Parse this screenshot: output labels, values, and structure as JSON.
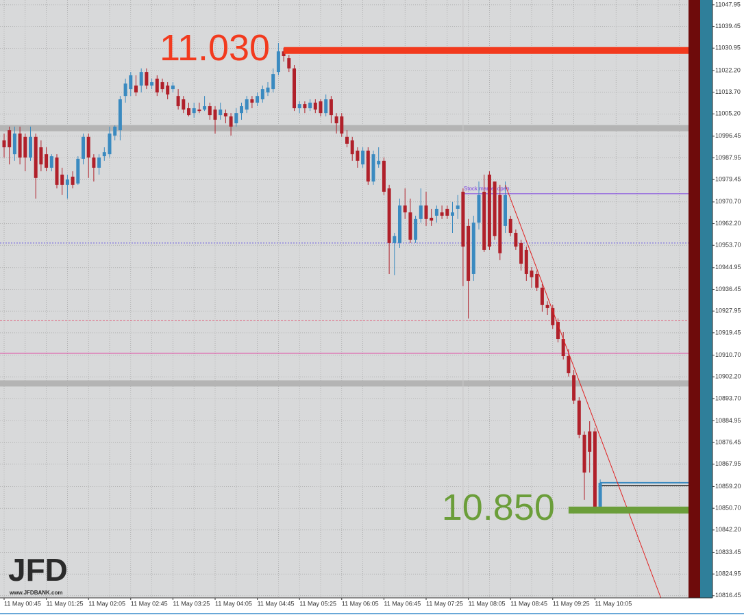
{
  "chart_data": {
    "type": "candlestick",
    "up_color": "#3a8ac0",
    "down_color": "#b0202a",
    "ylim": [
      10815.6,
      11049.8
    ],
    "yticks": [
      11047.95,
      11039.45,
      11030.95,
      {
        "value": 11022.2,
        "label": "11022.20"
      },
      {
        "value": 11013.7,
        "label": "11013.70"
      },
      {
        "value": 11005.2,
        "label": "11005.20"
      },
      10996.45,
      10987.95,
      10979.45,
      {
        "value": 10970.7,
        "label": "10970.70"
      },
      {
        "value": 10962.2,
        "label": "10962.20"
      },
      {
        "value": 10953.7,
        "label": "10953.70"
      },
      10944.95,
      10936.45,
      10927.95,
      10919.45,
      {
        "value": 10910.7,
        "label": "10910.70"
      },
      {
        "value": 10902.2,
        "label": "10902.20"
      },
      {
        "value": 10893.7,
        "label": "10893.70"
      },
      10884.95,
      10876.45,
      10867.95,
      {
        "value": 10859.2,
        "label": "10859.20"
      },
      {
        "value": 10850.7,
        "label": "10850.70"
      },
      {
        "value": 10842.2,
        "label": "10842.20"
      },
      10833.45,
      10824.95,
      10816.45
    ],
    "grid": true,
    "xticks": [
      "11 May 00:45",
      "11 May 01:25",
      "11 May 02:05",
      "11 May 02:45",
      "11 May 03:25",
      "11 May 04:05",
      "11 May 04:45",
      "11 May 05:25",
      "11 May 06:05",
      "11 May 06:45",
      "11 May 07:25",
      "11 May 08:05",
      "11 May 08:45",
      "11 May 09:25",
      "11 May 10:05"
    ],
    "candles": [
      [
        10994.8,
        10997.5,
        10988.1,
        10992.1
      ],
      [
        10998.8,
        11000.2,
        10985.4,
        10992.1
      ],
      [
        10989.4,
        11000.2,
        10986.8,
        10997.5
      ],
      [
        10997.5,
        11000.2,
        10985.4,
        10988.1
      ],
      [
        10996.2,
        10997.5,
        10982.7,
        10988.1
      ],
      [
        10988.1,
        11000.2,
        10986.8,
        10996.2
      ],
      [
        10996.2,
        10997.5,
        10972.0,
        10980.1
      ],
      [
        10992.1,
        10994.8,
        10982.7,
        10985.4
      ],
      [
        10989.4,
        10992.1,
        10982.7,
        10984.1
      ],
      [
        10984.1,
        10989.4,
        10982.7,
        10988.6
      ],
      [
        10988.1,
        10989.4,
        10976.0,
        10977.4
      ],
      [
        10981.4,
        10984.1,
        10973.4,
        10977.4
      ],
      [
        10977.4,
        10981.4,
        10972.0,
        10979.5
      ],
      [
        10980.6,
        10982.7,
        10976.0,
        10977.4
      ],
      [
        10977.9,
        10988.6,
        10977.4,
        10987.6
      ],
      [
        10987.6,
        10997.5,
        10985.4,
        10996.2
      ],
      [
        10996.2,
        10997.5,
        10980.1,
        10988.1
      ],
      [
        10988.1,
        10989.4,
        10978.7,
        10984.1
      ],
      [
        10984.1,
        10989.4,
        10981.4,
        10988.1
      ],
      [
        10988.6,
        10992.1,
        10986.8,
        10990.2
      ],
      [
        10989.4,
        11000.2,
        10988.1,
        10997.5
      ],
      [
        10996.7,
        11000.7,
        10994.8,
        11000.2
      ],
      [
        10998.8,
        11012.2,
        10994.8,
        11010.9
      ],
      [
        11012.2,
        11019.0,
        11009.6,
        11017.1
      ],
      [
        11014.9,
        11021.6,
        11012.2,
        11020.3
      ],
      [
        11016.3,
        11020.3,
        11012.2,
        11013.6
      ],
      [
        11016.3,
        11023.0,
        11013.6,
        11021.6
      ],
      [
        11021.6,
        11023.0,
        11014.9,
        11016.3
      ],
      [
        11016.3,
        11019.0,
        11014.9,
        11017.6
      ],
      [
        11019.0,
        11020.3,
        11012.2,
        11013.6
      ],
      [
        11017.6,
        11019.0,
        11013.6,
        11014.9
      ],
      [
        11016.3,
        11017.6,
        11010.9,
        11012.8
      ],
      [
        11014.9,
        11017.6,
        11013.6,
        11016.3
      ],
      [
        11012.2,
        11014.9,
        11006.9,
        11008.2
      ],
      [
        11010.9,
        11012.2,
        11005.5,
        11006.9
      ],
      [
        11007.4,
        11009.6,
        11004.2,
        11004.7
      ],
      [
        11005.5,
        11009.6,
        11003.7,
        11007.4
      ],
      [
        11006.9,
        11009.6,
        11005.5,
        11006.3
      ],
      [
        11006.9,
        11012.2,
        11006.3,
        11008.2
      ],
      [
        11008.2,
        11009.6,
        11002.9,
        11004.7
      ],
      [
        11006.9,
        11008.2,
        10997.5,
        11002.9
      ],
      [
        11004.7,
        11009.6,
        11002.9,
        11006.9
      ],
      [
        11005.5,
        11006.9,
        11001.5,
        11004.2
      ],
      [
        11004.2,
        11005.5,
        10996.7,
        11000.2
      ],
      [
        11001.5,
        11007.4,
        11000.2,
        11005.5
      ],
      [
        11005.5,
        11009.6,
        11002.9,
        11008.2
      ],
      [
        11006.9,
        11012.2,
        11005.5,
        11010.9
      ],
      [
        11010.9,
        11012.2,
        11007.4,
        11009.6
      ],
      [
        11009.6,
        11013.6,
        11008.2,
        11012.2
      ],
      [
        11010.9,
        11016.3,
        11009.6,
        11014.9
      ],
      [
        11013.6,
        11017.6,
        11012.2,
        11015.5
      ],
      [
        11014.9,
        11023.0,
        11013.6,
        11020.8
      ],
      [
        11021.6,
        11032.9,
        11020.3,
        11029.7
      ],
      [
        11029.7,
        11031.0,
        11025.7,
        11027.8
      ],
      [
        11027.0,
        11028.3,
        11021.6,
        11023.0
      ],
      [
        11023.0,
        11024.3,
        11006.3,
        11007.4
      ],
      [
        11007.4,
        11010.1,
        11005.5,
        11009.0
      ],
      [
        11009.0,
        11010.1,
        11005.5,
        11007.4
      ],
      [
        11007.4,
        11010.9,
        11006.3,
        11009.6
      ],
      [
        11009.6,
        11010.9,
        11005.5,
        11006.9
      ],
      [
        11010.1,
        11010.9,
        11004.2,
        11005.5
      ],
      [
        11005.5,
        11012.8,
        11004.2,
        11010.9
      ],
      [
        11010.9,
        11012.2,
        11001.5,
        11004.7
      ],
      [
        11004.2,
        11005.5,
        10997.5,
        11001.5
      ],
      [
        11004.2,
        11005.5,
        10996.2,
        10997.5
      ],
      [
        10996.2,
        10998.8,
        10992.1,
        10993.5
      ],
      [
        10994.8,
        10996.2,
        10986.8,
        10989.4
      ],
      [
        10990.8,
        10992.1,
        10984.1,
        10986.8
      ],
      [
        10985.4,
        10992.1,
        10984.1,
        10990.8
      ],
      [
        10990.8,
        10992.1,
        10977.4,
        10978.7
      ],
      [
        10978.7,
        10990.8,
        10977.4,
        10989.4
      ],
      [
        10985.4,
        10992.1,
        10984.1,
        10986.8
      ],
      [
        10986.8,
        10988.1,
        10973.4,
        10974.7
      ],
      [
        10976.0,
        10977.4,
        10942.5,
        10954.6
      ],
      [
        10954.6,
        10958.6,
        10942.0,
        10957.3
      ],
      [
        10954.6,
        10972.0,
        10952.7,
        10969.3
      ],
      [
        10969.3,
        10976.0,
        10964.0,
        10966.6
      ],
      [
        10966.6,
        10972.0,
        10954.6,
        10955.9
      ],
      [
        10955.9,
        10965.3,
        10954.6,
        10964.0
      ],
      [
        10964.0,
        10976.0,
        10962.6,
        10969.3
      ],
      [
        10969.3,
        10974.7,
        10961.3,
        10964.0
      ],
      [
        10964.5,
        10968.0,
        10961.3,
        10963.4
      ],
      [
        10965.3,
        10969.3,
        10962.6,
        10968.0
      ],
      [
        10966.6,
        10969.3,
        10964.0,
        10965.3
      ],
      [
        10968.0,
        10969.3,
        10964.0,
        10965.3
      ],
      [
        10965.3,
        10970.7,
        10958.6,
        10966.6
      ],
      [
        10968.0,
        10973.4,
        10964.0,
        10969.3
      ],
      [
        10974.7,
        10976.0,
        10937.7,
        10953.2
      ],
      [
        10961.3,
        10964.0,
        10925.1,
        10939.8
      ],
      [
        10942.5,
        10965.3,
        10939.8,
        10962.6
      ],
      [
        10962.6,
        10978.7,
        10959.9,
        10973.4
      ],
      [
        10974.7,
        10981.4,
        10951.1,
        10951.9
      ],
      [
        10981.4,
        10982.7,
        10951.9,
        10953.2
      ],
      [
        10978.7,
        10978.7,
        10955.9,
        10957.3
      ],
      [
        10973.4,
        10977.4,
        10947.9,
        10950.6
      ],
      [
        10961.3,
        10978.7,
        10958.6,
        10973.4
      ],
      [
        10964.0,
        10965.3,
        10957.3,
        10958.6
      ],
      [
        10958.6,
        10959.9,
        10951.9,
        10953.2
      ],
      [
        10954.6,
        10955.9,
        10943.8,
        10946.5
      ],
      [
        10951.9,
        10953.2,
        10939.8,
        10942.5
      ],
      [
        10943.8,
        10945.2,
        10937.1,
        10941.2
      ],
      [
        10942.5,
        10943.8,
        10935.8,
        10937.1
      ],
      [
        10937.1,
        10938.5,
        10927.7,
        10930.4
      ],
      [
        10930.4,
        10931.8,
        10926.4,
        10929.1
      ],
      [
        10929.1,
        10930.4,
        10921.0,
        10922.4
      ],
      [
        10923.7,
        10925.1,
        10915.7,
        10917.0
      ],
      [
        10917.0,
        10919.7,
        10909.0,
        10910.3
      ],
      [
        10910.3,
        10913.0,
        10902.3,
        10903.6
      ],
      [
        10902.8,
        10904.9,
        10891.5,
        10892.9
      ],
      [
        10892.9,
        10894.2,
        10878.1,
        10879.5
      ],
      [
        10879.5,
        10880.8,
        10854.0,
        10864.7
      ],
      [
        10880.8,
        10884.8,
        10864.7,
        10872.8
      ],
      [
        10880.8,
        10882.2,
        10850.8,
        10851.3
      ],
      [
        10851.3,
        10862.0,
        10850.8,
        10860.7
      ]
    ],
    "hlines": [
      {
        "value": 10999.6,
        "color": "#b4b4b4",
        "width": 9
      },
      {
        "value": 10899.6,
        "color": "#b4b4b4",
        "width": 9
      },
      {
        "value": 10954.6,
        "color": "#6a5ae0",
        "width": 1,
        "dash": "2,2"
      },
      {
        "value": 10924.3,
        "color": "#e0607a",
        "width": 1,
        "dash": "3,2"
      },
      {
        "value": 10911.4,
        "color": "#e040a0",
        "width": 1
      },
      {
        "value": 10860.7,
        "color": "#3a8ac0",
        "width": 2,
        "from": 113
      },
      {
        "value": 10859.6,
        "color": "#222222",
        "width": 1.5,
        "from": 113
      }
    ],
    "event": {
      "label": "Stock market open",
      "index": 87,
      "value": 10973.9,
      "color": "#7b3fe0"
    },
    "trendline": {
      "x": [
        95,
        124.5
      ],
      "y": [
        10977.4,
        10815.6
      ],
      "color": "#e02020"
    },
    "levels": [
      {
        "label": "11.030",
        "value": 11030,
        "from": 53,
        "color": "#f23a1e"
      },
      {
        "label": "10.850",
        "value": 10850,
        "from": 107,
        "color": "#6b9e3a"
      }
    ],
    "logo": {
      "name": "JFD",
      "url": "www.JFDBANK.com"
    }
  }
}
